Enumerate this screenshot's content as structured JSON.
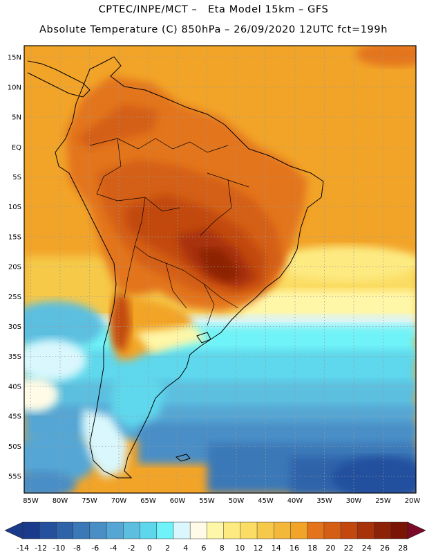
{
  "header": {
    "line1": "CPTEC/INPE/MCT –   Eta Model 15km – GFS",
    "line2": "Absolute Temperature (C) 850hPa – 26/09/2020 12UTC fct=199h"
  },
  "axes": {
    "lat_labels": [
      "15N",
      "10N",
      "5N",
      "EQ",
      "5S",
      "10S",
      "15S",
      "20S",
      "25S",
      "30S",
      "35S",
      "40S",
      "45S",
      "50S",
      "55S"
    ],
    "lon_labels": [
      "85W",
      "80W",
      "75W",
      "70W",
      "65W",
      "60W",
      "55W",
      "50W",
      "45W",
      "40W",
      "35W",
      "30W",
      "25W",
      "20W"
    ],
    "grid": true
  },
  "colorbar": {
    "labels": [
      "-14",
      "-12",
      "-10",
      "-8",
      "-6",
      "-4",
      "-2",
      "0",
      "2",
      "4",
      "6",
      "8",
      "10",
      "12",
      "14",
      "16",
      "18",
      "20",
      "22",
      "24",
      "26",
      "28"
    ],
    "colors": [
      "#1a3a8c",
      "#24509e",
      "#2e63aa",
      "#3a78b8",
      "#4a8ec6",
      "#55a6d4",
      "#5cbfe0",
      "#5ed7ec",
      "#6ff3f8",
      "#d9f7fc",
      "#fffbe6",
      "#fff7a8",
      "#fdeb82",
      "#fbdc64",
      "#f6c94a",
      "#f3b73a",
      "#f2a428",
      "#e3741c",
      "#d45e14",
      "#c2480e",
      "#a8320a",
      "#8c2206",
      "#7a1404"
    ],
    "low_arrow_color": "#1a3a8c",
    "high_arrow_color": "#7a0a28"
  }
}
